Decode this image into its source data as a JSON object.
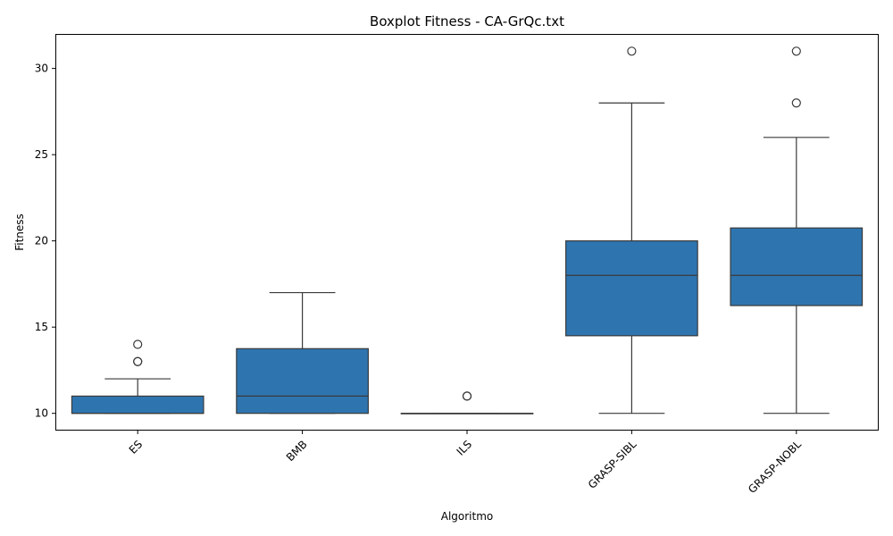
{
  "chart_data": {
    "type": "boxplot",
    "title": "Boxplot Fitness - CA-GrQc.txt",
    "xlabel": "Algoritmo",
    "ylabel": "Fitness",
    "ylim": [
      9,
      32
    ],
    "yticks": [
      10,
      15,
      20,
      25,
      30
    ],
    "grid": false,
    "box_color": "#2e75b0",
    "line_color": "#3a3a3a",
    "categories": [
      "ES",
      "BMB",
      "ILS",
      "GRASP-SIBL",
      "GRASP-NOBL"
    ],
    "boxes": [
      {
        "name": "ES",
        "whisker_low": 10,
        "q1": 10,
        "median": 10,
        "q3": 11,
        "whisker_high": 12,
        "outliers": [
          13,
          13,
          14
        ]
      },
      {
        "name": "BMB",
        "whisker_low": 10,
        "q1": 10,
        "median": 11,
        "q3": 13.75,
        "whisker_high": 17,
        "outliers": []
      },
      {
        "name": "ILS",
        "whisker_low": 10,
        "q1": 10,
        "median": 10,
        "q3": 10,
        "whisker_high": 10,
        "outliers": [
          11,
          11
        ]
      },
      {
        "name": "GRASP-SIBL",
        "whisker_low": 10,
        "q1": 14.5,
        "median": 18,
        "q3": 20,
        "whisker_high": 28,
        "outliers": [
          31
        ]
      },
      {
        "name": "GRASP-NOBL",
        "whisker_low": 10,
        "q1": 16.25,
        "median": 18,
        "q3": 20.75,
        "whisker_high": 26,
        "outliers": [
          28,
          31
        ]
      }
    ]
  }
}
